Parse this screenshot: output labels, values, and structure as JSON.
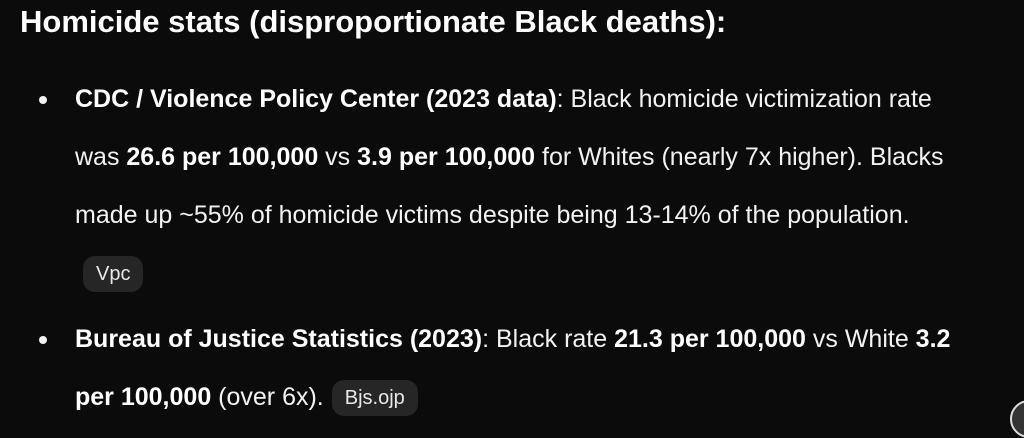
{
  "heading": "Homicide stats (disproportionate Black deaths):",
  "items": [
    {
      "runs": [
        {
          "text": "CDC / Violence Policy Center (2023 data)",
          "bold": true
        },
        {
          "text": ": Black homicide victimization rate was "
        },
        {
          "text": "26.6 per 100,000",
          "bold": true
        },
        {
          "text": " vs "
        },
        {
          "text": "3.9 per 100,000",
          "bold": true
        },
        {
          "text": " for Whites (nearly 7x higher). Blacks made up ~55% of homicide victims despite being 13-14% of the population."
        }
      ],
      "chip": "Vpc"
    },
    {
      "runs": [
        {
          "text": "Bureau of Justice Statistics (2023)",
          "bold": true
        },
        {
          "text": ": Black rate "
        },
        {
          "text": "21.3 per 100,000",
          "bold": true
        },
        {
          "text": " vs White "
        },
        {
          "text": "3.2 per 100,000",
          "bold": true
        },
        {
          "text": " (over 6x)."
        }
      ],
      "chip": "Bjs.ojp"
    }
  ]
}
